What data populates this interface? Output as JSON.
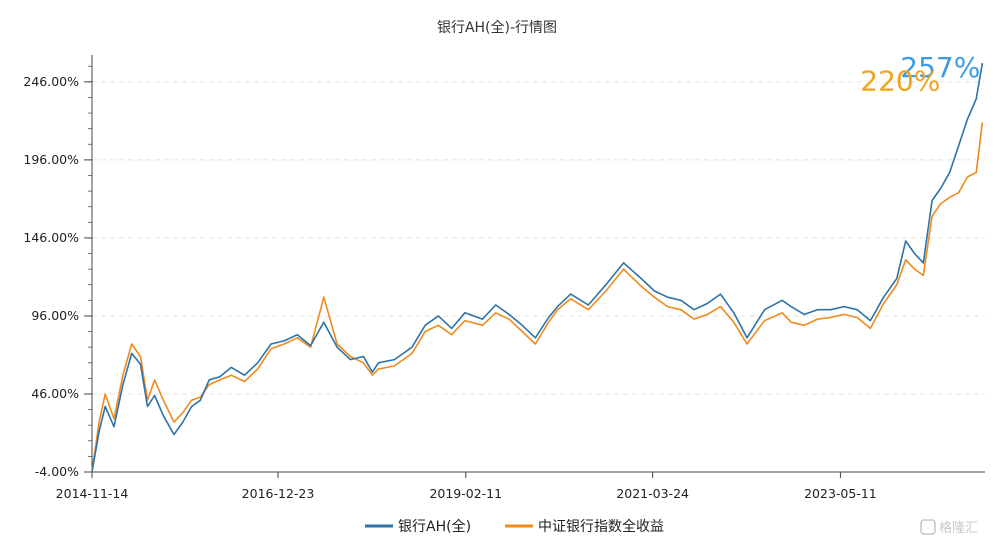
{
  "chart_data": {
    "type": "line",
    "title": "银行AH(全)-行情图",
    "y_tick_labels": [
      "246.00%",
      "196.00%",
      "146.00%",
      "96.00%",
      "46.00%",
      "-4.00%"
    ],
    "y_ticks": [
      246,
      196,
      146,
      96,
      46,
      -4
    ],
    "ylim": [
      -4,
      260
    ],
    "x_tick_labels": [
      "2014-11-14",
      "2016-12-23",
      "2019-02-11",
      "2021-03-24",
      "2023-05-11"
    ],
    "x_ticks": [
      2014.87,
      2016.98,
      2019.11,
      2021.23,
      2023.36
    ],
    "xlim": [
      2014.87,
      2025.0
    ],
    "grid": "horizontal",
    "legend_position": "bottom",
    "series": [
      {
        "name": "银行AH(全)",
        "color": "#2d73a6",
        "end_label": "257%",
        "end_label_color": "#3d9be3",
        "x": [
          2014.87,
          2014.95,
          2015.02,
          2015.12,
          2015.22,
          2015.32,
          2015.42,
          2015.5,
          2015.58,
          2015.68,
          2015.8,
          2015.9,
          2016.0,
          2016.1,
          2016.2,
          2016.32,
          2016.45,
          2016.6,
          2016.75,
          2016.9,
          2017.05,
          2017.2,
          2017.35,
          2017.5,
          2017.65,
          2017.8,
          2017.95,
          2018.05,
          2018.12,
          2018.3,
          2018.5,
          2018.65,
          2018.8,
          2018.95,
          2019.1,
          2019.3,
          2019.45,
          2019.6,
          2019.75,
          2019.9,
          2020.05,
          2020.15,
          2020.3,
          2020.5,
          2020.7,
          2020.9,
          2021.1,
          2021.25,
          2021.4,
          2021.55,
          2021.7,
          2021.85,
          2022.0,
          2022.15,
          2022.3,
          2022.5,
          2022.7,
          2022.8,
          2022.95,
          2023.1,
          2023.25,
          2023.4,
          2023.55,
          2023.7,
          2023.85,
          2024.0,
          2024.1,
          2024.2,
          2024.3,
          2024.4,
          2024.5,
          2024.6,
          2024.7,
          2024.8,
          2024.9,
          2024.97
        ],
        "values": [
          -4,
          22,
          38,
          25,
          52,
          72,
          65,
          38,
          45,
          32,
          20,
          28,
          38,
          42,
          55,
          57,
          63,
          58,
          66,
          78,
          80,
          84,
          77,
          92,
          76,
          68,
          70,
          60,
          66,
          68,
          76,
          90,
          96,
          88,
          98,
          94,
          103,
          97,
          90,
          82,
          95,
          102,
          110,
          103,
          116,
          130,
          120,
          112,
          108,
          106,
          100,
          104,
          110,
          98,
          82,
          100,
          106,
          102,
          97,
          100,
          100,
          102,
          100,
          93,
          108,
          120,
          144,
          136,
          130,
          170,
          178,
          188,
          205,
          222,
          235,
          258
        ]
      },
      {
        "name": "中证银行指数全收益",
        "color": "#f08a1c",
        "end_label": "220%",
        "end_label_color": "#f2a31b",
        "x": [
          2014.87,
          2014.95,
          2015.02,
          2015.12,
          2015.22,
          2015.32,
          2015.42,
          2015.5,
          2015.58,
          2015.68,
          2015.8,
          2015.9,
          2016.0,
          2016.1,
          2016.2,
          2016.32,
          2016.45,
          2016.6,
          2016.75,
          2016.9,
          2017.05,
          2017.2,
          2017.35,
          2017.5,
          2017.65,
          2017.8,
          2017.95,
          2018.05,
          2018.12,
          2018.3,
          2018.5,
          2018.65,
          2018.8,
          2018.95,
          2019.1,
          2019.3,
          2019.45,
          2019.6,
          2019.75,
          2019.9,
          2020.05,
          2020.15,
          2020.3,
          2020.5,
          2020.7,
          2020.9,
          2021.1,
          2021.25,
          2021.4,
          2021.55,
          2021.7,
          2021.85,
          2022.0,
          2022.15,
          2022.3,
          2022.5,
          2022.7,
          2022.8,
          2022.95,
          2023.1,
          2023.25,
          2023.4,
          2023.55,
          2023.7,
          2023.85,
          2024.0,
          2024.1,
          2024.2,
          2024.3,
          2024.4,
          2024.5,
          2024.6,
          2024.7,
          2024.8,
          2024.9,
          2024.97
        ],
        "values": [
          -4,
          28,
          46,
          30,
          58,
          78,
          70,
          42,
          55,
          42,
          28,
          34,
          42,
          44,
          52,
          55,
          58,
          54,
          62,
          75,
          78,
          82,
          76,
          108,
          78,
          70,
          66,
          58,
          62,
          64,
          72,
          86,
          90,
          84,
          93,
          90,
          98,
          94,
          86,
          78,
          92,
          100,
          107,
          100,
          112,
          126,
          115,
          108,
          102,
          100,
          94,
          97,
          102,
          92,
          78,
          93,
          98,
          92,
          90,
          94,
          95,
          97,
          95,
          88,
          104,
          116,
          132,
          126,
          122,
          160,
          168,
          172,
          175,
          185,
          188,
          220
        ]
      }
    ]
  },
  "watermark": "格隆汇"
}
